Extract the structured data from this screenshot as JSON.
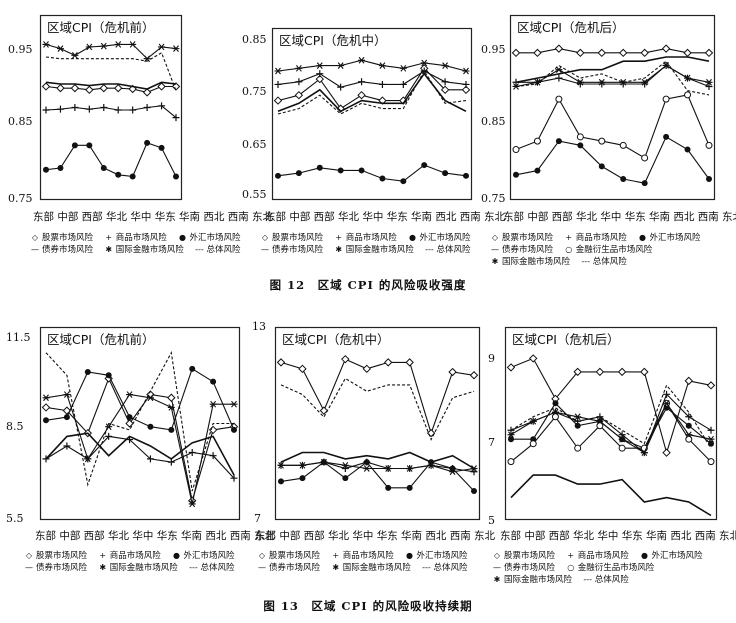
{
  "captions": {
    "fig12": "图 12　区域 CPI 的风险吸收强度",
    "fig13": "图 13　区域 CPI 的风险吸收持续期"
  },
  "x_categories": [
    "东部",
    "中部",
    "西部",
    "华北",
    "华中",
    "华东",
    "华南",
    "西北",
    "西南",
    "东北"
  ],
  "series_legend": {
    "stock": "股票市场风险",
    "commodity": "商品市场风险",
    "fx": "外汇市场风险",
    "bond": "债券市场风险",
    "intl": "国际金融市场风险",
    "total": "总体风险",
    "deriv": "金融衍生品市场风险"
  },
  "chart_data": [
    {
      "type": "line",
      "figure": "图 12",
      "title": "区域CPI（危机前）",
      "categories": [
        "东部",
        "中部",
        "西部",
        "华北",
        "华中",
        "华东",
        "华南",
        "西北",
        "西南",
        "东北"
      ],
      "yticks": [
        "0.95",
        "0.85",
        "0.75"
      ],
      "ylim": [
        0.75,
        0.97
      ],
      "series": [
        {
          "name": "股票市场风险",
          "values": [
            0.885,
            0.883,
            0.883,
            0.881,
            0.883,
            0.883,
            0.882,
            0.878,
            0.885,
            0.885
          ]
        },
        {
          "name": "商品市场风险",
          "values": [
            0.857,
            0.858,
            0.86,
            0.858,
            0.86,
            0.857,
            0.857,
            0.86,
            0.862,
            0.848
          ]
        },
        {
          "name": "外汇市场风险",
          "values": [
            0.786,
            0.788,
            0.815,
            0.815,
            0.788,
            0.78,
            0.778,
            0.818,
            0.812,
            0.778
          ]
        },
        {
          "name": "债券市场风险",
          "values": [
            0.89,
            0.888,
            0.888,
            0.886,
            0.888,
            0.888,
            0.885,
            0.882,
            0.89,
            0.888
          ]
        },
        {
          "name": "国际金融市场风险",
          "values": [
            0.935,
            0.93,
            0.922,
            0.932,
            0.933,
            0.935,
            0.935,
            0.918,
            0.932,
            0.93
          ]
        },
        {
          "name": "总体风险",
          "values": [
            0.92,
            0.918,
            0.918,
            0.918,
            0.918,
            0.918,
            0.918,
            0.915,
            0.925,
            0.88
          ]
        }
      ]
    },
    {
      "type": "line",
      "figure": "图 12",
      "title": "区域CPI（危机中）",
      "categories": [
        "东部",
        "中部",
        "西部",
        "华北",
        "华中",
        "华东",
        "华南",
        "西北",
        "西南",
        "东北"
      ],
      "yticks": [
        "0.85",
        "0.75",
        "0.65",
        "0.55"
      ],
      "ylim": [
        0.55,
        0.87
      ],
      "series": [
        {
          "name": "股票市场风险",
          "values": [
            0.735,
            0.745,
            0.775,
            0.72,
            0.745,
            0.735,
            0.735,
            0.795,
            0.755,
            0.755
          ]
        },
        {
          "name": "商品市场风险",
          "values": [
            0.765,
            0.77,
            0.785,
            0.76,
            0.77,
            0.765,
            0.765,
            0.79,
            0.77,
            0.765
          ]
        },
        {
          "name": "外汇市场风险",
          "values": [
            0.595,
            0.6,
            0.61,
            0.605,
            0.605,
            0.59,
            0.585,
            0.615,
            0.6,
            0.595
          ]
        },
        {
          "name": "债券市场风险",
          "values": [
            0.715,
            0.73,
            0.755,
            0.715,
            0.735,
            0.73,
            0.73,
            0.785,
            0.735,
            0.715
          ]
        },
        {
          "name": "国际金融市场风险",
          "values": [
            0.79,
            0.795,
            0.8,
            0.8,
            0.81,
            0.8,
            0.795,
            0.805,
            0.8,
            0.79
          ]
        },
        {
          "name": "总体风险",
          "values": [
            0.71,
            0.72,
            0.745,
            0.71,
            0.73,
            0.72,
            0.72,
            0.79,
            0.73,
            0.735
          ]
        }
      ]
    },
    {
      "type": "line",
      "figure": "图 12",
      "title": "区域CPI（危机后）",
      "categories": [
        "东部",
        "中部",
        "西部",
        "华北",
        "华中",
        "华东",
        "华南",
        "西北",
        "西南",
        "东北"
      ],
      "yticks": [
        "0.95",
        "0.85",
        "0.75"
      ],
      "ylim": [
        0.75,
        0.97
      ],
      "series": [
        {
          "name": "股票市场风险",
          "values": [
            0.925,
            0.925,
            0.93,
            0.925,
            0.925,
            0.925,
            0.925,
            0.93,
            0.925,
            0.925
          ]
        },
        {
          "name": "商品市场风险",
          "values": [
            0.89,
            0.89,
            0.895,
            0.888,
            0.888,
            0.888,
            0.888,
            0.91,
            0.895,
            0.885
          ]
        },
        {
          "name": "外汇市场风险",
          "values": [
            0.78,
            0.785,
            0.82,
            0.815,
            0.79,
            0.775,
            0.77,
            0.825,
            0.81,
            0.775
          ]
        },
        {
          "name": "债券市场风险",
          "values": [
            0.89,
            0.895,
            0.9,
            0.905,
            0.905,
            0.915,
            0.915,
            0.92,
            0.92,
            0.915
          ]
        },
        {
          "name": "金融衍生品市场风险",
          "values": [
            0.81,
            0.82,
            0.87,
            0.825,
            0.82,
            0.815,
            0.8,
            0.87,
            0.875,
            0.815
          ]
        },
        {
          "name": "国际金融市场风险",
          "values": [
            0.885,
            0.89,
            0.905,
            0.89,
            0.89,
            0.89,
            0.89,
            0.91,
            0.895,
            0.89
          ]
        },
        {
          "name": "总体风险",
          "values": [
            0.885,
            0.888,
            0.91,
            0.895,
            0.9,
            0.89,
            0.895,
            0.915,
            0.88,
            0.875
          ]
        }
      ]
    },
    {
      "type": "line",
      "figure": "图 13",
      "title": "区域CPI（危机前）",
      "categories": [
        "东部",
        "中部",
        "西部",
        "华北",
        "华中",
        "华东",
        "华南",
        "西北",
        "西南",
        "东北"
      ],
      "yticks": [
        "11.5",
        "8.5",
        "5.5"
      ],
      "ylim": [
        5.5,
        11.5
      ],
      "series": [
        {
          "name": "股票市场风险",
          "values": [
            9.0,
            8.9,
            8.2,
            9.9,
            8.5,
            9.4,
            9.3,
            6.1,
            8.3,
            8.4
          ]
        },
        {
          "name": "商品市场风险",
          "values": [
            7.4,
            7.8,
            7.4,
            8.1,
            8.0,
            7.4,
            7.3,
            7.6,
            7.5,
            6.8
          ]
        },
        {
          "name": "外汇市场风险",
          "values": [
            8.6,
            8.7,
            10.1,
            10.0,
            8.7,
            8.4,
            8.3,
            10.2,
            9.8,
            8.3
          ]
        },
        {
          "name": "债券市场风险",
          "values": [
            7.4,
            8.1,
            8.2,
            7.5,
            8.1,
            7.8,
            7.4,
            7.9,
            8.1,
            6.9
          ]
        },
        {
          "name": "国际金融市场风险",
          "values": [
            9.3,
            9.4,
            7.4,
            8.4,
            9.4,
            9.3,
            9.0,
            6.0,
            9.1,
            9.1
          ]
        },
        {
          "name": "总体风险",
          "values": [
            10.7,
            10.0,
            6.6,
            8.5,
            8.3,
            9.5,
            10.7,
            6.4,
            8.5,
            8.5
          ]
        }
      ]
    },
    {
      "type": "line",
      "figure": "图 13",
      "title": "区域CPI（危机中）",
      "categories": [
        "东部",
        "中部",
        "西部",
        "华北",
        "华中",
        "华东",
        "华南",
        "西北",
        "西南",
        "东北"
      ],
      "yticks": [
        "13",
        "7"
      ],
      "ylim": [
        7,
        13
      ],
      "series": [
        {
          "name": "股票市场风险",
          "values": [
            11.9,
            11.7,
            10.4,
            12.0,
            11.7,
            11.9,
            11.9,
            9.7,
            11.6,
            11.5
          ]
        },
        {
          "name": "商品市场风险",
          "values": [
            8.7,
            8.7,
            8.8,
            8.6,
            8.8,
            8.6,
            8.6,
            8.7,
            8.6,
            8.5
          ]
        },
        {
          "name": "外汇市场风险",
          "values": [
            8.2,
            8.3,
            8.8,
            8.3,
            8.8,
            8.0,
            8.0,
            8.8,
            8.6,
            7.9
          ]
        },
        {
          "name": "债券市场风险",
          "values": [
            8.8,
            9.1,
            9.1,
            8.9,
            9.0,
            8.9,
            9.1,
            8.8,
            9.0,
            8.6
          ]
        },
        {
          "name": "国际金融市场风险",
          "values": [
            8.7,
            8.7,
            8.8,
            8.7,
            8.6,
            8.6,
            8.6,
            8.7,
            8.5,
            8.6
          ]
        },
        {
          "name": "总体风险",
          "values": [
            11.2,
            10.9,
            10.2,
            11.4,
            11.0,
            11.2,
            11.2,
            9.5,
            10.8,
            11.0
          ]
        }
      ]
    },
    {
      "type": "line",
      "figure": "图 13",
      "title": "区域CPI（危机后）",
      "categories": [
        "东部",
        "中部",
        "西部",
        "华北",
        "华中",
        "华东",
        "华南",
        "西北",
        "西南",
        "东北"
      ],
      "yticks": [
        "9",
        "7",
        "5"
      ],
      "ylim": [
        5,
        9.3
      ],
      "series": [
        {
          "name": "股票市场风险",
          "values": [
            8.4,
            8.6,
            7.7,
            8.3,
            8.3,
            8.3,
            8.3,
            6.5,
            8.1,
            8.0
          ]
        },
        {
          "name": "商品市场风险",
          "values": [
            7.0,
            7.2,
            7.4,
            7.2,
            7.3,
            6.9,
            6.5,
            7.8,
            7.3,
            7.0
          ]
        },
        {
          "name": "外汇市场风险",
          "values": [
            6.8,
            6.8,
            7.6,
            7.1,
            7.2,
            6.8,
            6.6,
            7.5,
            7.1,
            6.7
          ]
        },
        {
          "name": "债券市场风险",
          "values": [
            5.5,
            6.0,
            6.0,
            5.8,
            5.8,
            5.9,
            5.4,
            5.5,
            5.4,
            5.1
          ]
        },
        {
          "name": "金融衍生品市场风险",
          "values": [
            6.3,
            6.7,
            7.3,
            6.6,
            7.1,
            6.6,
            6.6,
            7.6,
            6.8,
            6.3
          ]
        },
        {
          "name": "国际金融市场风险",
          "values": [
            6.9,
            7.2,
            7.4,
            7.3,
            7.2,
            6.8,
            6.5,
            7.6,
            6.9,
            6.8
          ]
        },
        {
          "name": "总体风险",
          "values": [
            7.0,
            7.3,
            7.5,
            7.2,
            7.3,
            7.0,
            6.7,
            8.0,
            7.4,
            6.6
          ]
        }
      ]
    }
  ]
}
